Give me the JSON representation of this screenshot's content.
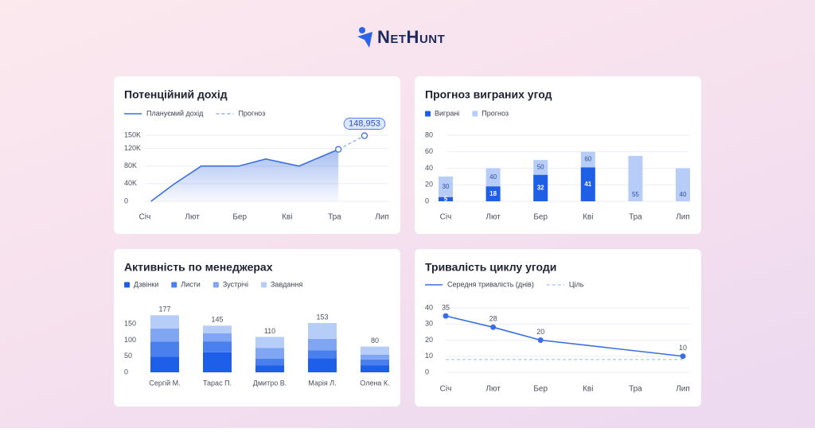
{
  "header": {
    "logo": "NetHunt"
  },
  "chart_data": [
    {
      "type": "line",
      "title": "Потенційний дохід",
      "xlim": [
        0,
        5
      ],
      "xticks": [
        {
          "value": 0,
          "label": "Січ"
        },
        {
          "value": 1,
          "label": "Лют"
        },
        {
          "value": 2,
          "label": "Бер"
        },
        {
          "value": 3,
          "label": "Кві"
        },
        {
          "value": 4,
          "label": "Тра"
        },
        {
          "value": 5,
          "label": "Лип"
        }
      ],
      "ylim": [
        0,
        150000
      ],
      "yticks": [
        0,
        {
          "value": 40000,
          "label": "40K"
        },
        {
          "value": 80000,
          "label": "80K"
        },
        {
          "value": 120000,
          "label": "120K"
        },
        {
          "value": 150000,
          "label": "150K"
        }
      ],
      "grid": true,
      "series": [
        {
          "name": "Плануємий дохід",
          "color": "#3b6fe0",
          "area": true,
          "x": [
            0.13,
            0.6,
            1.19,
            1.98,
            2.55,
            3.25,
            4.08
          ],
          "values": [
            0,
            38000,
            80000,
            80000,
            96000,
            80000,
            118000
          ]
        },
        {
          "name": "Прогноз",
          "color": "#8fb2f0",
          "dash": true,
          "marker": "hollow",
          "x": [
            4.08,
            4.63
          ],
          "values": [
            118000,
            148953
          ],
          "value_labels": [
            null,
            "148,953"
          ]
        }
      ]
    },
    {
      "type": "bar",
      "barmode": "overlay",
      "title": "Прогноз виграних угод",
      "categories": [
        "Січ",
        "Лют",
        "Бер",
        "Кві",
        "Тра",
        "Лип"
      ],
      "ylim": [
        0,
        80
      ],
      "yticks": [
        0,
        20,
        40,
        60,
        80
      ],
      "grid": true,
      "labels": true,
      "series": [
        {
          "name": "Виграні",
          "color": "#1f5fe6",
          "values": [
            5,
            18,
            32,
            41,
            null,
            null
          ]
        },
        {
          "name": "Прогноз",
          "color": "#b7cdf7",
          "values": [
            30,
            40,
            50,
            60,
            55,
            40
          ]
        }
      ]
    },
    {
      "type": "bar",
      "barmode": "stack",
      "title": "Активність по менеджерах",
      "categories": [
        "Сергій М.",
        "Тарас П.",
        "Дмитро В.",
        "Марія Л.",
        "Олена К."
      ],
      "ylim": [
        0,
        200
      ],
      "yticks": [
        0,
        50,
        100,
        150
      ],
      "grid": false,
      "series": [
        {
          "name": "Дзвінки",
          "color": "#1d5fe8",
          "values": [
            49,
            62,
            21,
            44,
            22
          ]
        },
        {
          "name": "Листи",
          "color": "#4a7fee",
          "values": [
            46,
            34,
            21,
            24,
            18
          ]
        },
        {
          "name": "Зустрічі",
          "color": "#7fa5f3",
          "values": [
            41,
            25,
            34,
            36,
            15
          ]
        },
        {
          "name": "Завдання",
          "color": "#b6cdf8",
          "values": [
            41,
            24,
            34,
            49,
            25
          ]
        }
      ],
      "totals": [
        177,
        145,
        110,
        153,
        80
      ]
    },
    {
      "type": "line",
      "title": "Тривалість циклу угоди",
      "xlim": [
        0,
        5
      ],
      "xticks": [
        {
          "value": 0,
          "label": "Січ"
        },
        {
          "value": 1,
          "label": "Лют"
        },
        {
          "value": 2,
          "label": "Бер"
        },
        {
          "value": 3,
          "label": "Кві"
        },
        {
          "value": 4,
          "label": "Тра"
        },
        {
          "value": 5,
          "label": "Лип"
        }
      ],
      "ylim": [
        0,
        40
      ],
      "yticks": [
        0,
        10,
        20,
        30,
        40
      ],
      "grid": true,
      "series": [
        {
          "name": "Середня тривалість (днів)",
          "color": "#3b6fe0",
          "marker": "filled",
          "labels": true,
          "x": [
            0,
            1,
            2,
            5
          ],
          "values": [
            35,
            28,
            20,
            10
          ]
        },
        {
          "name": "Ціль",
          "color": "#b3cbf3",
          "dash": true,
          "x": [
            0,
            5
          ],
          "values": [
            8,
            8
          ]
        }
      ]
    }
  ]
}
